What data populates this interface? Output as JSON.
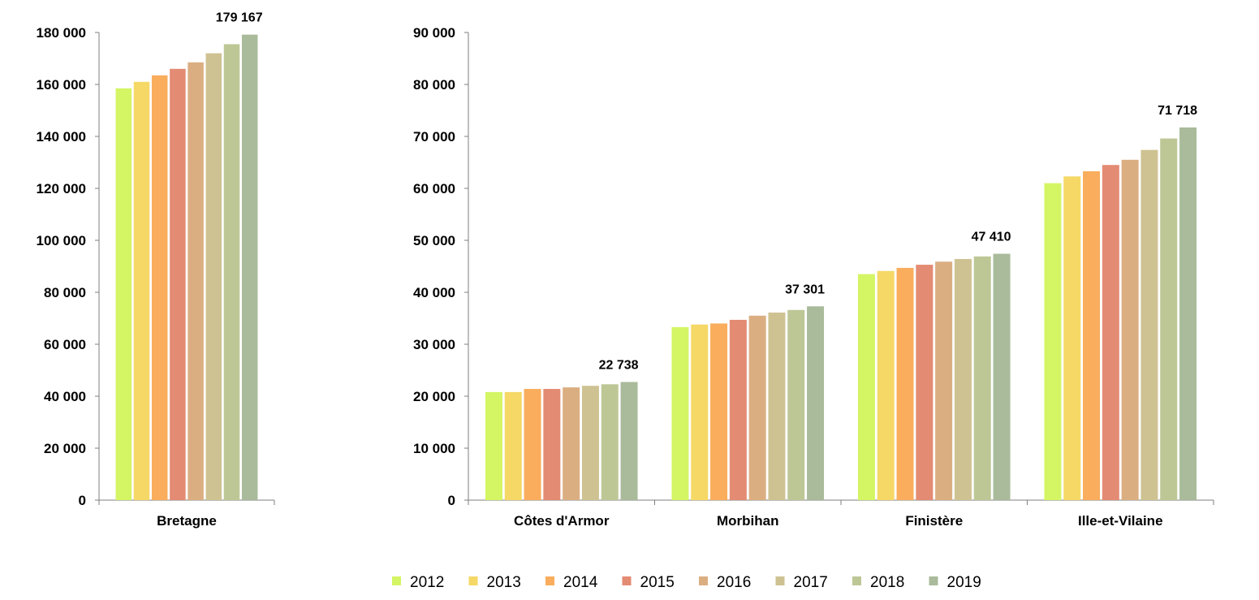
{
  "chart_data": [
    {
      "type": "bar",
      "categories": [
        "Bretagne"
      ],
      "series": [
        {
          "name": "2012",
          "values": [
            158500
          ]
        },
        {
          "name": "2013",
          "values": [
            161000
          ]
        },
        {
          "name": "2014",
          "values": [
            163500
          ]
        },
        {
          "name": "2015",
          "values": [
            166000
          ]
        },
        {
          "name": "2016",
          "values": [
            168500
          ]
        },
        {
          "name": "2017",
          "values": [
            172000
          ]
        },
        {
          "name": "2018",
          "values": [
            175500
          ]
        },
        {
          "name": "2019",
          "values": [
            179167
          ]
        }
      ],
      "data_labels": [
        {
          "category": "Bretagne",
          "series": "2019",
          "text": "179 167"
        }
      ],
      "ylim": [
        0,
        180000
      ],
      "yticks": [
        0,
        20000,
        40000,
        60000,
        80000,
        100000,
        120000,
        140000,
        160000,
        180000
      ],
      "ytick_labels": [
        "0",
        "20 000",
        "40 000",
        "60 000",
        "80 000",
        "100 000",
        "120 000",
        "140 000",
        "160 000",
        "180 000"
      ],
      "grid": false
    },
    {
      "type": "bar",
      "categories": [
        "Côtes d'Armor",
        "Morbihan",
        "Finistère",
        "Ille-et-Vilaine"
      ],
      "series": [
        {
          "name": "2012",
          "values": [
            20800,
            33300,
            43500,
            61000
          ]
        },
        {
          "name": "2013",
          "values": [
            20800,
            33800,
            44100,
            62300
          ]
        },
        {
          "name": "2014",
          "values": [
            21400,
            34000,
            44700,
            63300
          ]
        },
        {
          "name": "2015",
          "values": [
            21400,
            34700,
            45300,
            64500
          ]
        },
        {
          "name": "2016",
          "values": [
            21700,
            35500,
            45900,
            65500
          ]
        },
        {
          "name": "2017",
          "values": [
            22000,
            36100,
            46400,
            67400
          ]
        },
        {
          "name": "2018",
          "values": [
            22300,
            36600,
            46900,
            69600
          ]
        },
        {
          "name": "2019",
          "values": [
            22738,
            37301,
            47410,
            71718
          ]
        }
      ],
      "data_labels": [
        {
          "category": "Côtes d'Armor",
          "series": "2019",
          "text": "22 738"
        },
        {
          "category": "Morbihan",
          "series": "2019",
          "text": "37 301"
        },
        {
          "category": "Finistère",
          "series": "2019",
          "text": "47 410"
        },
        {
          "category": "Ille-et-Vilaine",
          "series": "2019",
          "text": "71 718"
        }
      ],
      "ylim": [
        0,
        90000
      ],
      "yticks": [
        0,
        10000,
        20000,
        30000,
        40000,
        50000,
        60000,
        70000,
        80000,
        90000
      ],
      "ytick_labels": [
        "0",
        "10 000",
        "20 000",
        "30 000",
        "40 000",
        "50 000",
        "60 000",
        "70 000",
        "80 000",
        "90 000"
      ],
      "grid": false
    }
  ],
  "legend": {
    "placement": "bottom",
    "entries": [
      {
        "name": "2012",
        "color": "#d4f564"
      },
      {
        "name": "2013",
        "color": "#f5d866"
      },
      {
        "name": "2014",
        "color": "#f9ad5d"
      },
      {
        "name": "2015",
        "color": "#e48b73"
      },
      {
        "name": "2016",
        "color": "#dbae82"
      },
      {
        "name": "2017",
        "color": "#cfc292"
      },
      {
        "name": "2018",
        "color": "#bdc796"
      },
      {
        "name": "2019",
        "color": "#a9bb9b"
      }
    ]
  }
}
